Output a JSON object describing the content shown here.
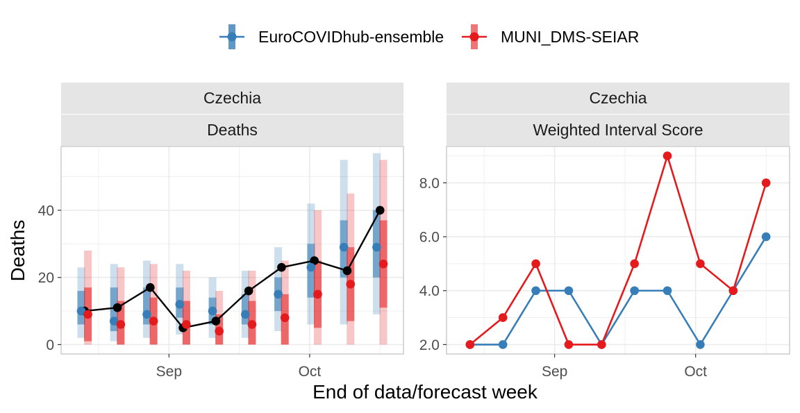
{
  "colors": {
    "ensemble": "#377EB8",
    "muni": "#E41A1C",
    "observed": "#000000",
    "strip_bg": "#E5E5E5",
    "grid": "#EBEBEB",
    "panel_border": "#B3B3B3"
  },
  "legend": {
    "items": [
      {
        "label": "EuroCOVIDhub-ensemble",
        "color": "#377EB8"
      },
      {
        "label": "MUNI_DMS-SEIAR",
        "color": "#E41A1C"
      }
    ]
  },
  "x_axis_title": "End of data/forecast week",
  "chart_data": [
    {
      "type": "line",
      "location": "Czechia",
      "strip": "Deaths",
      "ylabel": "Deaths",
      "x_ticks": [
        {
          "label": "Sep",
          "date": "2021-09-01"
        },
        {
          "label": "Oct",
          "date": "2021-10-01"
        }
      ],
      "x": [
        "2021-08-14",
        "2021-08-21",
        "2021-08-28",
        "2021-09-04",
        "2021-09-11",
        "2021-09-18",
        "2021-09-25",
        "2021-10-02",
        "2021-10-09",
        "2021-10-16"
      ],
      "xlim": [
        "2021-08-09",
        "2021-10-21"
      ],
      "y_ticks": [
        0,
        20,
        40
      ],
      "ylim": [
        -2.8,
        59
      ],
      "observed": {
        "values": [
          10,
          11,
          17,
          5,
          7,
          16,
          23,
          25,
          22,
          40
        ]
      },
      "series": [
        {
          "name": "EuroCOVIDhub-ensemble",
          "color": "#377EB8",
          "median": [
            10,
            7,
            9,
            12,
            10,
            9,
            15,
            23,
            29,
            29
          ],
          "inner_interval": [
            [
              6,
              16
            ],
            [
              4,
              17
            ],
            [
              6,
              17
            ],
            [
              8,
              17
            ],
            [
              6,
              14
            ],
            [
              6,
              15
            ],
            [
              10,
              20
            ],
            [
              14,
              30
            ],
            [
              20,
              37
            ],
            [
              20,
              40
            ]
          ],
          "outer_interval": [
            [
              2,
              23
            ],
            [
              1,
              24
            ],
            [
              2,
              25
            ],
            [
              3,
              24
            ],
            [
              2,
              20
            ],
            [
              2,
              22
            ],
            [
              4,
              29
            ],
            [
              6,
              42
            ],
            [
              6,
              55
            ],
            [
              9,
              57
            ]
          ]
        },
        {
          "name": "MUNI_DMS-SEIAR",
          "color": "#E41A1C",
          "median": [
            9,
            6,
            7,
            6,
            4,
            6,
            8,
            15,
            18,
            24
          ],
          "inner_interval": [
            [
              1,
              17
            ],
            [
              0,
              13
            ],
            [
              0,
              14
            ],
            [
              0,
              13
            ],
            [
              0,
              9
            ],
            [
              0,
              13
            ],
            [
              0,
              15
            ],
            [
              5,
              25
            ],
            [
              7,
              29
            ],
            [
              11,
              37
            ]
          ],
          "outer_interval": [
            [
              0,
              28
            ],
            [
              0,
              23
            ],
            [
              0,
              24
            ],
            [
              0,
              22
            ],
            [
              0,
              16
            ],
            [
              0,
              22
            ],
            [
              0,
              25
            ],
            [
              0,
              40
            ],
            [
              0,
              45
            ],
            [
              0,
              55
            ]
          ]
        }
      ]
    },
    {
      "type": "line",
      "location": "Czechia",
      "strip": "Weighted Interval Score",
      "ylabel": "",
      "x_ticks": [
        {
          "label": "Sep",
          "date": "2021-09-01"
        },
        {
          "label": "Oct",
          "date": "2021-10-01"
        }
      ],
      "x": [
        "2021-08-14",
        "2021-08-21",
        "2021-08-28",
        "2021-09-04",
        "2021-09-11",
        "2021-09-18",
        "2021-09-25",
        "2021-10-02",
        "2021-10-09",
        "2021-10-16"
      ],
      "xlim": [
        "2021-08-09",
        "2021-10-21"
      ],
      "y_ticks": [
        "2.0",
        "4.0",
        "6.0",
        "8.0"
      ],
      "ylim": [
        1.65,
        9.35
      ],
      "series": [
        {
          "name": "EuroCOVIDhub-ensemble",
          "color": "#377EB8",
          "values": [
            2,
            2,
            4,
            4,
            2,
            4,
            4,
            2,
            4,
            6
          ]
        },
        {
          "name": "MUNI_DMS-SEIAR",
          "color": "#E41A1C",
          "values": [
            2,
            3,
            5,
            2,
            2,
            5,
            9,
            5,
            4,
            8
          ]
        }
      ]
    }
  ]
}
